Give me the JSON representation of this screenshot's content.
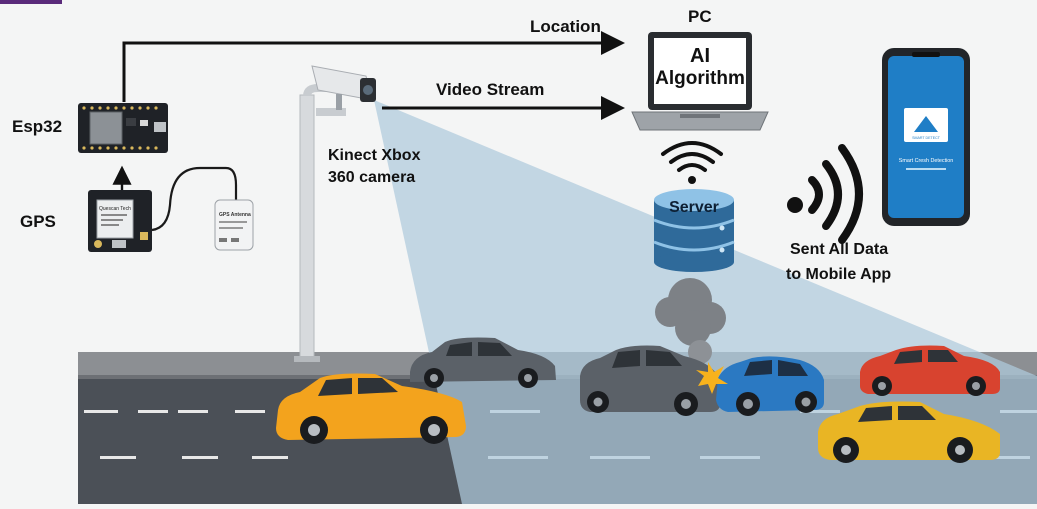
{
  "labels": {
    "location": "Location",
    "pc": "PC",
    "ai_line1": "AI",
    "ai_line2": "Algorithm",
    "video_stream": "Video Stream",
    "esp32": "Esp32",
    "gps": "GPS",
    "camera_line1": "Kinect Xbox",
    "camera_line2": "360 camera",
    "server": "Server",
    "sent_line1": "Sent All Data",
    "sent_line2": "to Mobile App"
  },
  "gps_module": {
    "brand": "Quescan Tech"
  },
  "gps_antenna": {
    "title": "GPS Antenna"
  },
  "phone": {
    "app_title": "Smart Cresh Detection",
    "logo_text": "SMART DETECT"
  },
  "colors": {
    "road": "#4a4f55",
    "curb": "#8a8d90",
    "camera_cone": "#b5cfdf",
    "server": "#2f6a9a",
    "phone_screen": "#1f7ec6",
    "arrow": "#111111"
  },
  "vehicles": [
    {
      "name": "yellow-car-left",
      "color": "yellow"
    },
    {
      "name": "gray-car-top",
      "color": "gray"
    },
    {
      "name": "gray-crashed-car",
      "color": "gray"
    },
    {
      "name": "blue-crashed-car",
      "color": "blue"
    },
    {
      "name": "red-car",
      "color": "red"
    },
    {
      "name": "yellow-car-right",
      "color": "yellow"
    }
  ]
}
